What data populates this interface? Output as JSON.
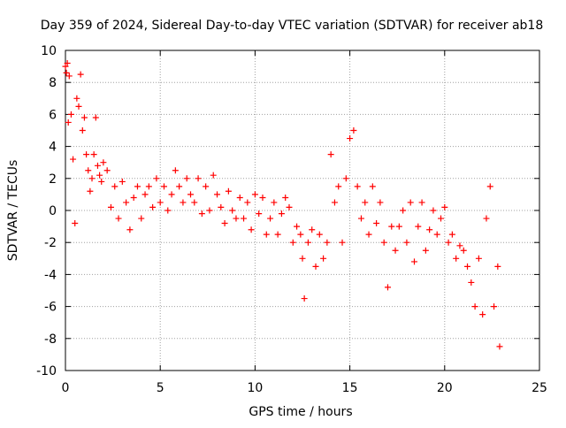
{
  "chart_data": {
    "type": "scatter",
    "title": "Day 359 of 2024, Sidereal Day-to-day VTEC variation (SDTVAR) for receiver ab18",
    "xlabel": "GPS time / hours",
    "ylabel": "SDTVAR / TECUs",
    "xlim": [
      0,
      25
    ],
    "ylim": [
      -10,
      10
    ],
    "xticks": [
      0,
      5,
      10,
      15,
      20,
      25
    ],
    "yticks": [
      -10,
      -8,
      -6,
      -4,
      -2,
      0,
      2,
      4,
      6,
      8,
      10
    ],
    "xtick_labels": [
      "0",
      "5",
      "10",
      "15",
      "20",
      "25"
    ],
    "ytick_labels": [
      "-10",
      "-8",
      "-6",
      "-4",
      "-2",
      "0",
      "2",
      "4",
      "6",
      "8",
      "10"
    ],
    "grid": true,
    "marker": "+",
    "color": "#ff0000",
    "series": [
      {
        "name": "SDTVAR",
        "x": [
          0.0,
          0.05,
          0.1,
          0.15,
          0.2,
          0.3,
          0.4,
          0.5,
          0.6,
          0.7,
          0.8,
          0.9,
          1.0,
          1.1,
          1.2,
          1.3,
          1.4,
          1.5,
          1.6,
          1.7,
          1.8,
          1.9,
          2.0,
          2.2,
          2.4,
          2.6,
          2.8,
          3.0,
          3.2,
          3.4,
          3.6,
          3.8,
          4.0,
          4.2,
          4.4,
          4.6,
          4.8,
          5.0,
          5.2,
          5.4,
          5.6,
          5.8,
          6.0,
          6.2,
          6.4,
          6.6,
          6.8,
          7.0,
          7.2,
          7.4,
          7.6,
          7.8,
          8.0,
          8.2,
          8.4,
          8.6,
          8.8,
          9.0,
          9.2,
          9.4,
          9.6,
          9.8,
          10.0,
          10.2,
          10.4,
          10.6,
          10.8,
          11.0,
          11.2,
          11.4,
          11.6,
          11.8,
          12.0,
          12.2,
          12.4,
          12.5,
          12.6,
          12.8,
          13.0,
          13.2,
          13.4,
          13.6,
          13.8,
          14.0,
          14.2,
          14.4,
          14.6,
          14.8,
          15.0,
          15.2,
          15.4,
          15.6,
          15.8,
          16.0,
          16.2,
          16.4,
          16.6,
          16.8,
          17.0,
          17.2,
          17.4,
          17.6,
          17.8,
          18.0,
          18.2,
          18.4,
          18.6,
          18.8,
          19.0,
          19.2,
          19.4,
          19.6,
          19.8,
          20.0,
          20.2,
          20.4,
          20.6,
          20.8,
          21.0,
          21.2,
          21.4,
          21.6,
          21.8,
          22.0,
          22.2,
          22.4,
          22.6,
          22.8,
          22.9
        ],
        "y": [
          9.0,
          8.6,
          9.2,
          5.5,
          8.4,
          6.0,
          3.2,
          -0.8,
          7.0,
          6.5,
          8.5,
          5.0,
          5.8,
          3.5,
          2.5,
          1.2,
          2.0,
          3.5,
          5.8,
          2.8,
          2.2,
          1.8,
          3.0,
          2.5,
          0.2,
          1.5,
          -0.5,
          1.8,
          0.5,
          -1.2,
          0.8,
          1.5,
          -0.5,
          1.0,
          1.5,
          0.2,
          2.0,
          0.5,
          1.5,
          0.0,
          1.0,
          2.5,
          1.5,
          0.5,
          2.0,
          1.0,
          0.5,
          2.0,
          -0.2,
          1.5,
          0.0,
          2.2,
          1.0,
          0.2,
          -0.8,
          1.2,
          0.0,
          -0.5,
          0.8,
          -0.5,
          0.5,
          -1.2,
          1.0,
          -0.2,
          0.8,
          -1.5,
          -0.5,
          0.5,
          -1.5,
          -0.2,
          0.8,
          0.2,
          -2.0,
          -1.0,
          -1.5,
          -3.0,
          -5.5,
          -2.0,
          -1.2,
          -3.5,
          -1.5,
          -3.0,
          -2.0,
          3.5,
          0.5,
          1.5,
          -2.0,
          2.0,
          4.5,
          5.0,
          1.5,
          -0.5,
          0.5,
          -1.5,
          1.5,
          -0.8,
          0.5,
          -2.0,
          -4.8,
          -1.0,
          -2.5,
          -1.0,
          0.0,
          -2.0,
          0.5,
          -3.2,
          -1.0,
          0.5,
          -2.5,
          -1.2,
          0.0,
          -1.5,
          -0.5,
          0.2,
          -2.0,
          -1.5,
          -3.0,
          -2.2,
          -2.5,
          -3.5,
          -4.5,
          -6.0,
          -3.0,
          -6.5,
          -0.5,
          1.5,
          -6.0,
          -3.5,
          -8.5
        ]
      }
    ]
  }
}
